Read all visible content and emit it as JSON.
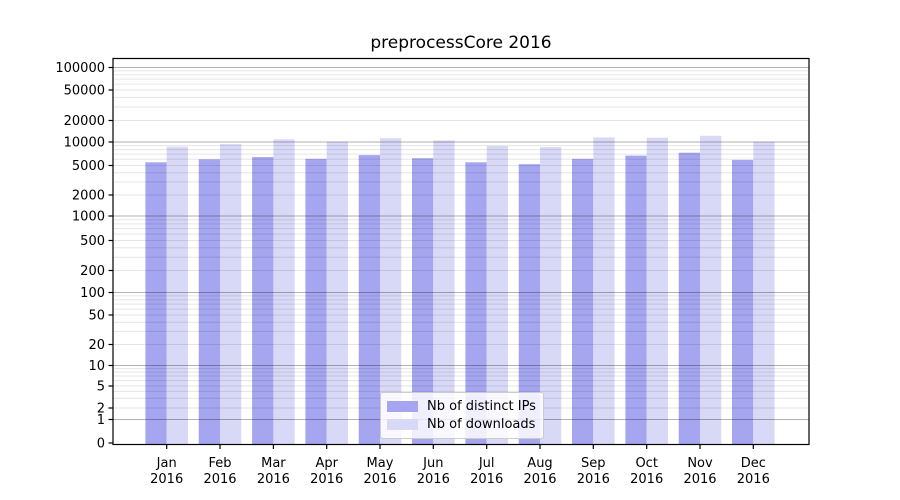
{
  "chart_data": {
    "type": "bar",
    "title": "preprocessCore 2016",
    "xlabel": "",
    "ylabel": "",
    "year_label": "2016",
    "categories": [
      "Jan",
      "Feb",
      "Mar",
      "Apr",
      "May",
      "Jun",
      "Jul",
      "Aug",
      "Sep",
      "Oct",
      "Nov",
      "Dec"
    ],
    "series": [
      {
        "name": "Nb of distinct IPs",
        "color": "#a5a5f0",
        "values": [
          5500,
          6000,
          6400,
          6100,
          6800,
          6200,
          5500,
          5200,
          6100,
          6700,
          7300,
          5900
        ]
      },
      {
        "name": "Nb of downloads",
        "color": "#d8d8f7",
        "values": [
          8700,
          9400,
          10900,
          10100,
          11300,
          10500,
          8900,
          8600,
          11600,
          11500,
          12200,
          10100
        ]
      }
    ],
    "y_ticks": [
      0,
      1,
      2,
      5,
      10,
      20,
      50,
      100,
      200,
      500,
      1000,
      2000,
      5000,
      10000,
      20000,
      50000,
      100000
    ],
    "y_tick_labels": [
      "0",
      "1",
      "2",
      "5",
      "10",
      "20",
      "50",
      "100",
      "200",
      "500",
      "1000",
      "2000",
      "5000",
      "10000",
      "20000",
      "50000",
      "100000"
    ],
    "ylim": [
      0,
      130000
    ],
    "scale": "log",
    "grid": true,
    "legend_position": "lower center",
    "colors": {
      "axis": "#000000",
      "grid_major": "rgba(0,0,0,0.30)",
      "grid_minor": "rgba(0,0,0,0.10)",
      "text": "#000000"
    }
  }
}
